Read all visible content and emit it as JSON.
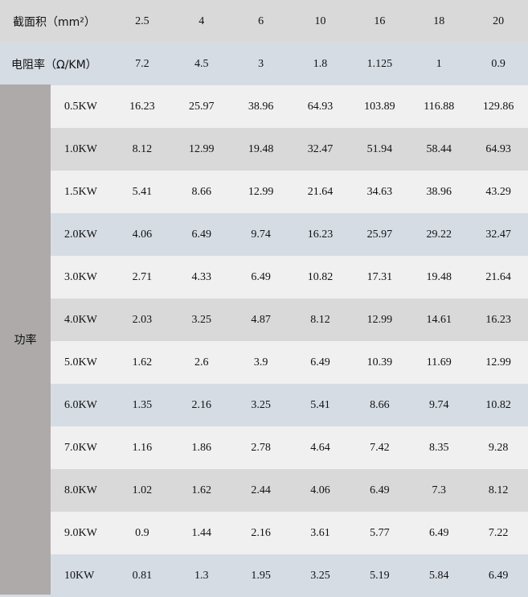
{
  "header": {
    "label": "截面积（mm²）",
    "values": [
      "2.5",
      "4",
      "6",
      "10",
      "16",
      "18",
      "20"
    ]
  },
  "resistance": {
    "label": "电阻率（Ω/KM）",
    "values": [
      "7.2",
      "4.5",
      "3",
      "1.8",
      "1.125",
      "1",
      "0.9"
    ]
  },
  "power_label": "功率",
  "rows": [
    {
      "label": "0.5KW",
      "style": "light",
      "values": [
        "16.23",
        "25.97",
        "38.96",
        "64.93",
        "103.89",
        "116.88",
        "129.86"
      ]
    },
    {
      "label": "1.0KW",
      "style": "gray",
      "values": [
        "8.12",
        "12.99",
        "19.48",
        "32.47",
        "51.94",
        "58.44",
        "64.93"
      ]
    },
    {
      "label": "1.5KW",
      "style": "light",
      "values": [
        "5.41",
        "8.66",
        "12.99",
        "21.64",
        "34.63",
        "38.96",
        "43.29"
      ]
    },
    {
      "label": "2.0KW",
      "style": "blue",
      "values": [
        "4.06",
        "6.49",
        "9.74",
        "16.23",
        "25.97",
        "29.22",
        "32.47"
      ]
    },
    {
      "label": "3.0KW",
      "style": "light",
      "values": [
        "2.71",
        "4.33",
        "6.49",
        "10.82",
        "17.31",
        "19.48",
        "21.64"
      ]
    },
    {
      "label": "4.0KW",
      "style": "gray",
      "values": [
        "2.03",
        "3.25",
        "4.87",
        "8.12",
        "12.99",
        "14.61",
        "16.23"
      ]
    },
    {
      "label": "5.0KW",
      "style": "light",
      "values": [
        "1.62",
        "2.6",
        "3.9",
        "6.49",
        "10.39",
        "11.69",
        "12.99"
      ]
    },
    {
      "label": "6.0KW",
      "style": "blue",
      "values": [
        "1.35",
        "2.16",
        "3.25",
        "5.41",
        "8.66",
        "9.74",
        "10.82"
      ]
    },
    {
      "label": "7.0KW",
      "style": "light",
      "values": [
        "1.16",
        "1.86",
        "2.78",
        "4.64",
        "7.42",
        "8.35",
        "9.28"
      ]
    },
    {
      "label": "8.0KW",
      "style": "gray",
      "values": [
        "1.02",
        "1.62",
        "2.44",
        "4.06",
        "6.49",
        "7.3",
        "8.12"
      ]
    },
    {
      "label": "9.0KW",
      "style": "light",
      "values": [
        "0.9",
        "1.44",
        "2.16",
        "3.61",
        "5.77",
        "6.49",
        "7.22"
      ]
    },
    {
      "label": "10KW",
      "style": "blue",
      "values": [
        "0.81",
        "1.3",
        "1.95",
        "3.25",
        "5.19",
        "5.84",
        "6.49"
      ]
    }
  ],
  "colors": {
    "header": "#d9d9d9",
    "blue": "#d6dce4",
    "gray": "#d9d9d9",
    "light": "#f0f0f0",
    "side": "#aeaaaa"
  }
}
